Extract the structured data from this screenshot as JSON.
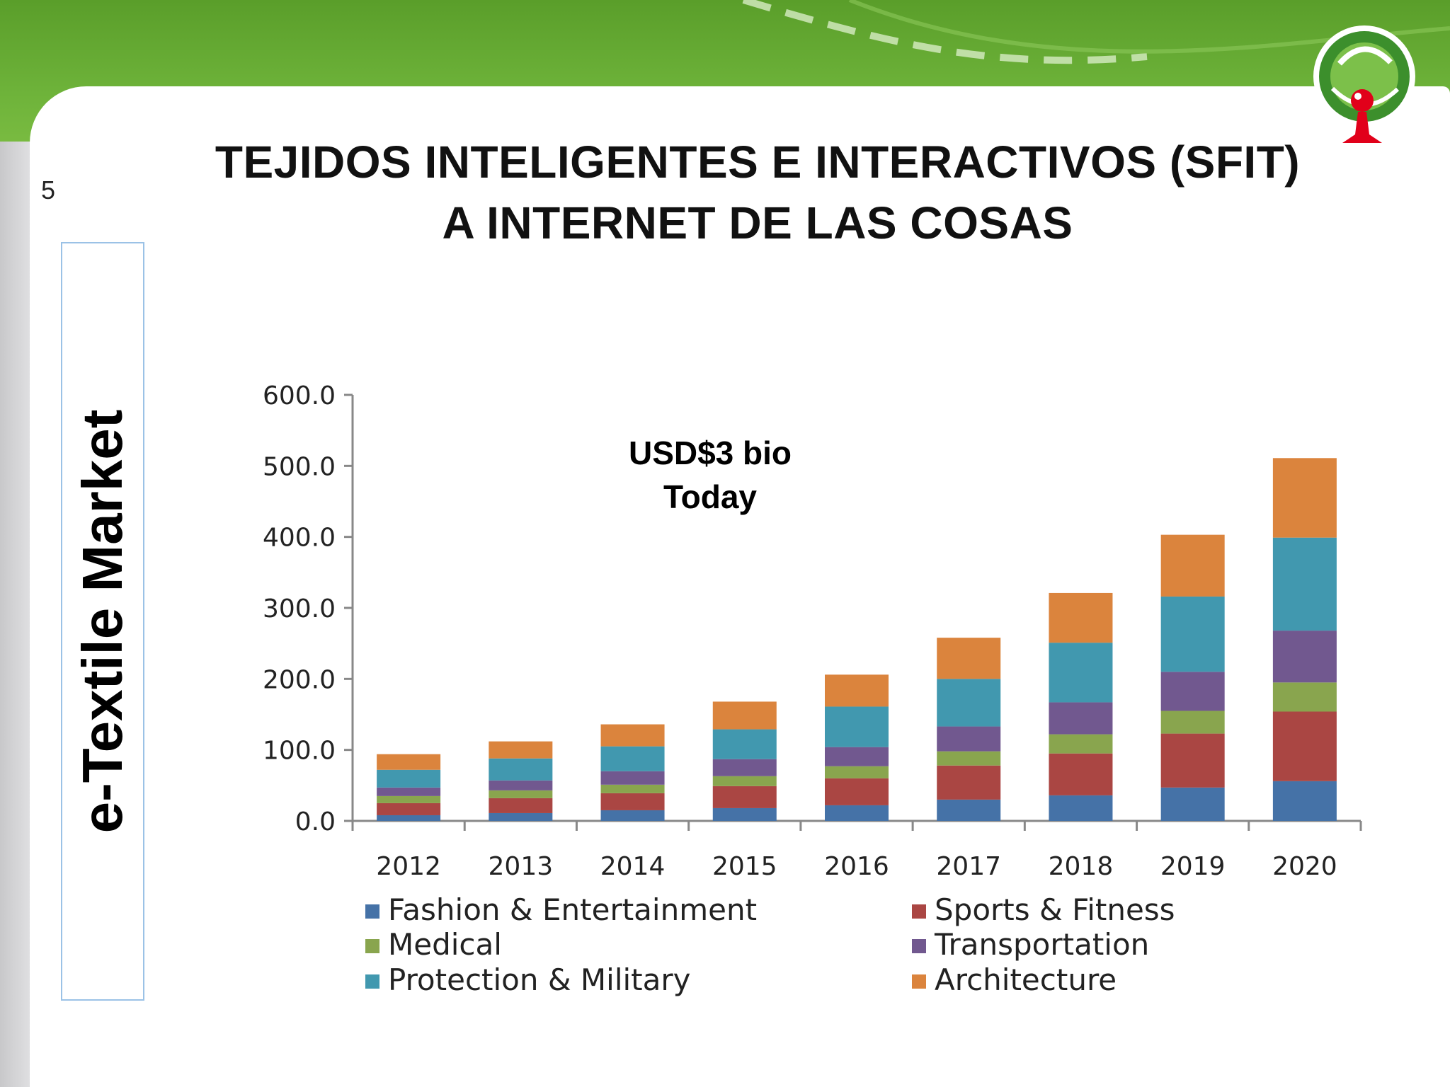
{
  "slide": {
    "number": "5",
    "title_line1": "TEJIDOS INTELIGENTES E INTERACTIVOS (SFIT)",
    "title_line2": "A INTERNET DE LAS COSAS",
    "side_label": "e-Textile Market",
    "logo_icon": "tree-logo-icon"
  },
  "colors": {
    "header_green": "#6eb33a",
    "series": [
      "#4572a7",
      "#aa4643",
      "#89a54e",
      "#71588f",
      "#4198af",
      "#db843d"
    ]
  },
  "chart_data": {
    "type": "bar",
    "stacked": true,
    "title": "",
    "xlabel": "",
    "ylabel": "",
    "ylim": [
      0,
      600
    ],
    "yticks": [
      "0.0",
      "100.0",
      "200.0",
      "300.0",
      "400.0",
      "500.0",
      "600.0"
    ],
    "categories": [
      "2012",
      "2013",
      "2014",
      "2015",
      "2016",
      "2017",
      "2018",
      "2019",
      "2020"
    ],
    "legend_position": "bottom",
    "annotation": [
      "USD$3 bio",
      "Today"
    ],
    "series": [
      {
        "name": "Fashion & Entertainment",
        "values": [
          8,
          11,
          15,
          18,
          22,
          30,
          36,
          47,
          56
        ]
      },
      {
        "name": "Sports & Fitness",
        "values": [
          17,
          21,
          24,
          31,
          38,
          48,
          59,
          76,
          98
        ]
      },
      {
        "name": "Medical",
        "values": [
          10,
          11,
          12,
          14,
          17,
          20,
          27,
          32,
          41
        ]
      },
      {
        "name": "Transportation",
        "values": [
          12,
          14,
          19,
          24,
          27,
          35,
          45,
          55,
          73
        ]
      },
      {
        "name": "Protection & Military",
        "values": [
          25,
          31,
          35,
          42,
          57,
          67,
          84,
          106,
          131
        ]
      },
      {
        "name": "Architecture",
        "values": [
          22,
          24,
          31,
          39,
          45,
          58,
          70,
          87,
          112
        ]
      }
    ]
  }
}
